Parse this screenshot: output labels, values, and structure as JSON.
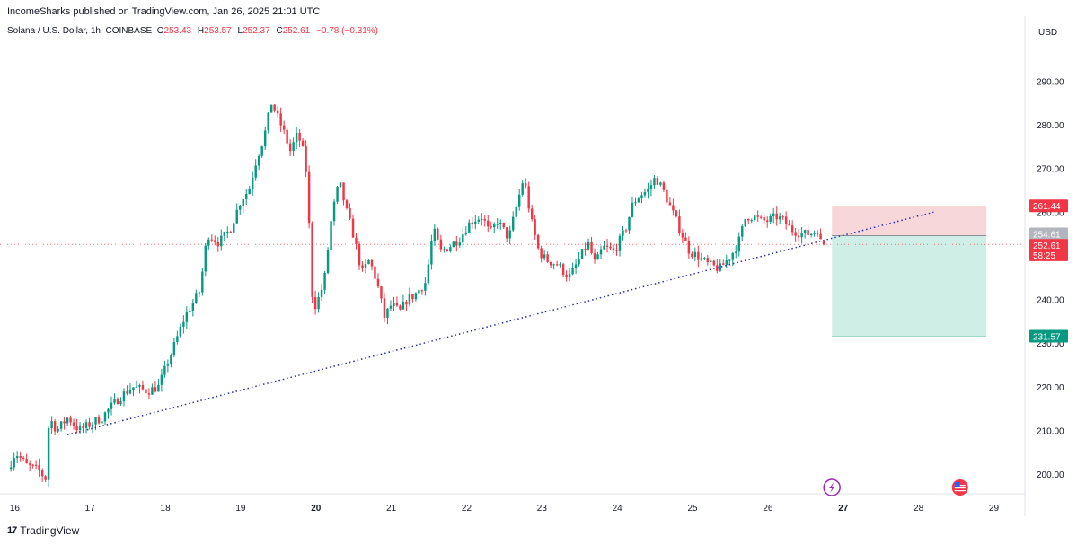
{
  "header": {
    "published": "IncomeSharks published on TradingView.com, Jan 26, 2025 21:01 UTC"
  },
  "legend": {
    "symbol": "Solana / U.S. Dollar, 1h, COINBASE",
    "open_label": "O",
    "open": "253.43",
    "high_label": "H",
    "high": "253.57",
    "low_label": "L",
    "low": "252.37",
    "close_label": "C",
    "close": "252.61",
    "change": "−0.78 (−0.31%)"
  },
  "axis": {
    "currency": "USD"
  },
  "footer": {
    "brand": "TradingView",
    "logo_mark": "17"
  },
  "colors": {
    "up": "#089981",
    "down": "#f23645",
    "trendline": "#2a2ea8",
    "stop_zone": "#f8d7db",
    "target_zone": "#cfeee6",
    "stop_badge": "#f23645",
    "target_badge": "#089981"
  },
  "icons": [
    "lightning-event-icon",
    "us-flag-event-icon",
    "tradingview-logo-icon"
  ],
  "chart_data": {
    "type": "candlestick",
    "symbol": "Solana / U.S. Dollar",
    "interval": "1h",
    "exchange": "COINBASE",
    "x_ticks": [
      "16",
      "17",
      "18",
      "19",
      "20",
      "21",
      "22",
      "23",
      "24",
      "25",
      "26",
      "27",
      "28",
      "29"
    ],
    "x_ticks_bold": [
      "20",
      "27"
    ],
    "y_ticks": [
      "200.00",
      "210.00",
      "220.00",
      "230.00",
      "240.00",
      "250.00",
      "260.00",
      "270.00",
      "280.00",
      "290.00"
    ],
    "ylim": [
      195.5,
      298.7
    ],
    "xlim": [
      15.9,
      29.4
    ],
    "price_anchors": [
      [
        15.95,
        201
      ],
      [
        16.05,
        205
      ],
      [
        16.2,
        202
      ],
      [
        16.35,
        201
      ],
      [
        16.45,
        199
      ],
      [
        16.5,
        213
      ],
      [
        16.6,
        210
      ],
      [
        16.75,
        213
      ],
      [
        16.9,
        210
      ],
      [
        17.0,
        211
      ],
      [
        17.2,
        213
      ],
      [
        17.4,
        217
      ],
      [
        17.6,
        220
      ],
      [
        17.8,
        219
      ],
      [
        17.95,
        220
      ],
      [
        18.15,
        229
      ],
      [
        18.3,
        236
      ],
      [
        18.5,
        242
      ],
      [
        18.6,
        255
      ],
      [
        18.75,
        253
      ],
      [
        18.9,
        256
      ],
      [
        19.05,
        263
      ],
      [
        19.15,
        265
      ],
      [
        19.25,
        272
      ],
      [
        19.35,
        277
      ],
      [
        19.45,
        285
      ],
      [
        19.5,
        283
      ],
      [
        19.6,
        279
      ],
      [
        19.7,
        274
      ],
      [
        19.8,
        278
      ],
      [
        19.9,
        272
      ],
      [
        19.95,
        257
      ],
      [
        20.0,
        238
      ],
      [
        20.05,
        239
      ],
      [
        20.15,
        244
      ],
      [
        20.25,
        259
      ],
      [
        20.35,
        267
      ],
      [
        20.45,
        260
      ],
      [
        20.55,
        254
      ],
      [
        20.65,
        246
      ],
      [
        20.75,
        249
      ],
      [
        20.85,
        244
      ],
      [
        20.95,
        236
      ],
      [
        21.05,
        239
      ],
      [
        21.15,
        237
      ],
      [
        21.25,
        240
      ],
      [
        21.35,
        241
      ],
      [
        21.5,
        244
      ],
      [
        21.6,
        256
      ],
      [
        21.7,
        251
      ],
      [
        21.8,
        252
      ],
      [
        21.95,
        254
      ],
      [
        22.1,
        258
      ],
      [
        22.25,
        259
      ],
      [
        22.35,
        255
      ],
      [
        22.45,
        258
      ],
      [
        22.6,
        254
      ],
      [
        22.7,
        261
      ],
      [
        22.8,
        268
      ],
      [
        22.9,
        258
      ],
      [
        23.0,
        251
      ],
      [
        23.1,
        249
      ],
      [
        23.25,
        248
      ],
      [
        23.4,
        245
      ],
      [
        23.5,
        248
      ],
      [
        23.65,
        253
      ],
      [
        23.75,
        248
      ],
      [
        23.85,
        252
      ],
      [
        24.0,
        251
      ],
      [
        24.15,
        256
      ],
      [
        24.25,
        262
      ],
      [
        24.35,
        264
      ],
      [
        24.45,
        265
      ],
      [
        24.55,
        268
      ],
      [
        24.65,
        265
      ],
      [
        24.75,
        261
      ],
      [
        24.85,
        257
      ],
      [
        25.0,
        251
      ],
      [
        25.1,
        250
      ],
      [
        25.25,
        248
      ],
      [
        25.4,
        247
      ],
      [
        25.55,
        250
      ],
      [
        25.65,
        253
      ],
      [
        25.75,
        259
      ],
      [
        25.85,
        259
      ],
      [
        25.95,
        258
      ],
      [
        26.05,
        258
      ],
      [
        26.15,
        259
      ],
      [
        26.25,
        258
      ],
      [
        26.35,
        256
      ],
      [
        26.5,
        255
      ],
      [
        26.6,
        255
      ],
      [
        26.7,
        256
      ],
      [
        26.75,
        252.61
      ]
    ],
    "trendline": {
      "style": "dotted",
      "points": [
        [
          16.7,
          209
        ],
        [
          28.2,
          260
        ]
      ]
    },
    "position": {
      "type": "long",
      "entry": 254.61,
      "stop_loss": 261.44,
      "take_profit": 231.57,
      "x_start": 26.85,
      "x_end": 28.9
    },
    "price_labels": [
      {
        "value": "261.44",
        "price": 261.44,
        "kind": "stop"
      },
      {
        "value": "254.61",
        "price": 254.61,
        "kind": "entry"
      },
      {
        "value": "252.61",
        "price": 252.61,
        "kind": "last"
      },
      {
        "value": "58:25",
        "price": 250.2,
        "kind": "countdown"
      },
      {
        "value": "231.57",
        "price": 231.57,
        "kind": "target"
      }
    ],
    "last_price": 252.61,
    "last_open": 253.43,
    "last_high": 253.57,
    "last_low": 252.37
  }
}
